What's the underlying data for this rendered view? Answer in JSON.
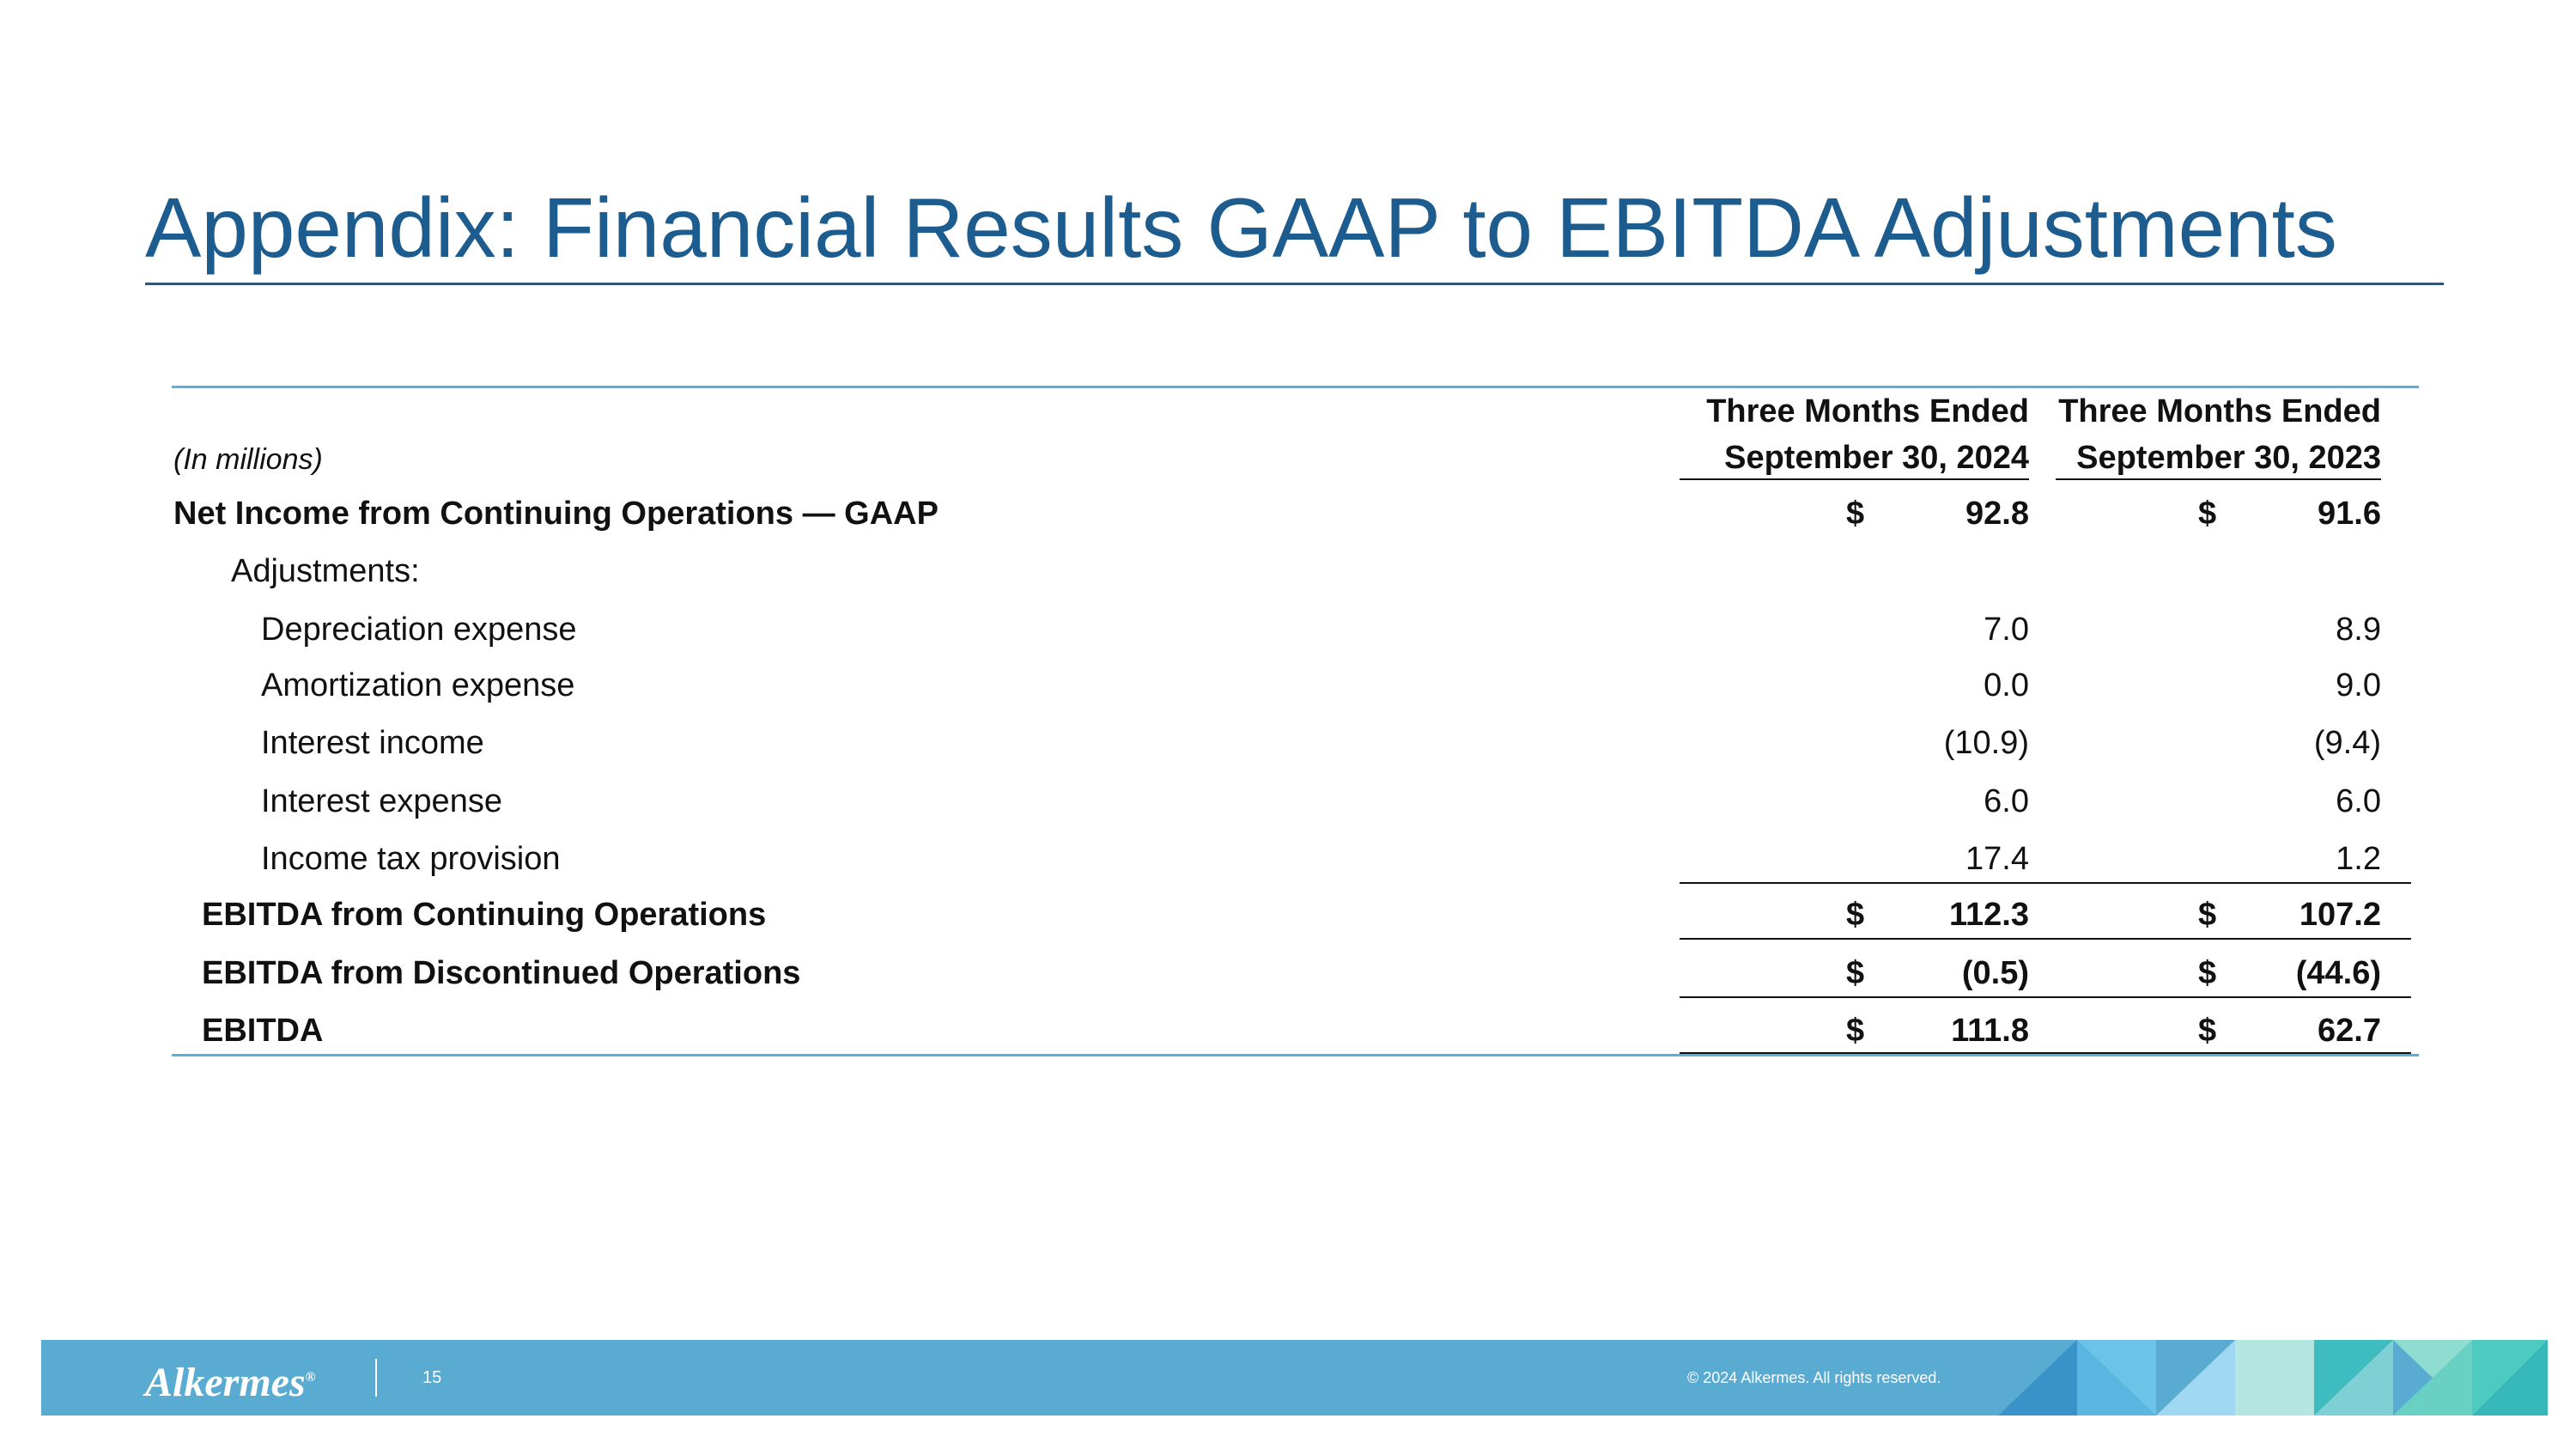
{
  "header": {
    "title": "Appendix: Financial Results GAAP to EBITDA Adjustments"
  },
  "table": {
    "unit_label": "(In millions)",
    "columns": [
      {
        "line1": "Three Months Ended",
        "line2": "September 30, 2024"
      },
      {
        "line1": "Three Months Ended",
        "line2": "September 30, 2023"
      }
    ],
    "rows": [
      {
        "label": "Net Income from Continuing Operations — GAAP",
        "currency": [
          "$",
          "$"
        ],
        "values": [
          "92.8",
          "91.6"
        ]
      },
      {
        "label": "Adjustments:"
      },
      {
        "label": "Depreciation expense",
        "values": [
          "7.0",
          "8.9"
        ]
      },
      {
        "label": "Amortization expense",
        "values": [
          "0.0",
          "9.0"
        ]
      },
      {
        "label": "Interest income",
        "values": [
          "(10.9)",
          "(9.4)"
        ]
      },
      {
        "label": "Interest expense",
        "values": [
          "6.0",
          "6.0"
        ]
      },
      {
        "label": "Income tax provision",
        "values": [
          "17.4",
          "1.2"
        ]
      },
      {
        "label": "EBITDA from Continuing Operations",
        "currency": [
          "$",
          "$"
        ],
        "values": [
          "112.3",
          "107.2"
        ]
      },
      {
        "label": "EBITDA from Discontinued Operations",
        "currency": [
          "$",
          "$"
        ],
        "values": [
          "(0.5)",
          "(44.6)"
        ]
      },
      {
        "label": "EBITDA",
        "currency": [
          "$",
          "$"
        ],
        "values": [
          "111.8",
          "62.7"
        ]
      }
    ]
  },
  "footer": {
    "logo": "Alkermes",
    "trademark": "®",
    "page": "15",
    "copyright": "© 2024 Alkermes. All rights reserved."
  }
}
